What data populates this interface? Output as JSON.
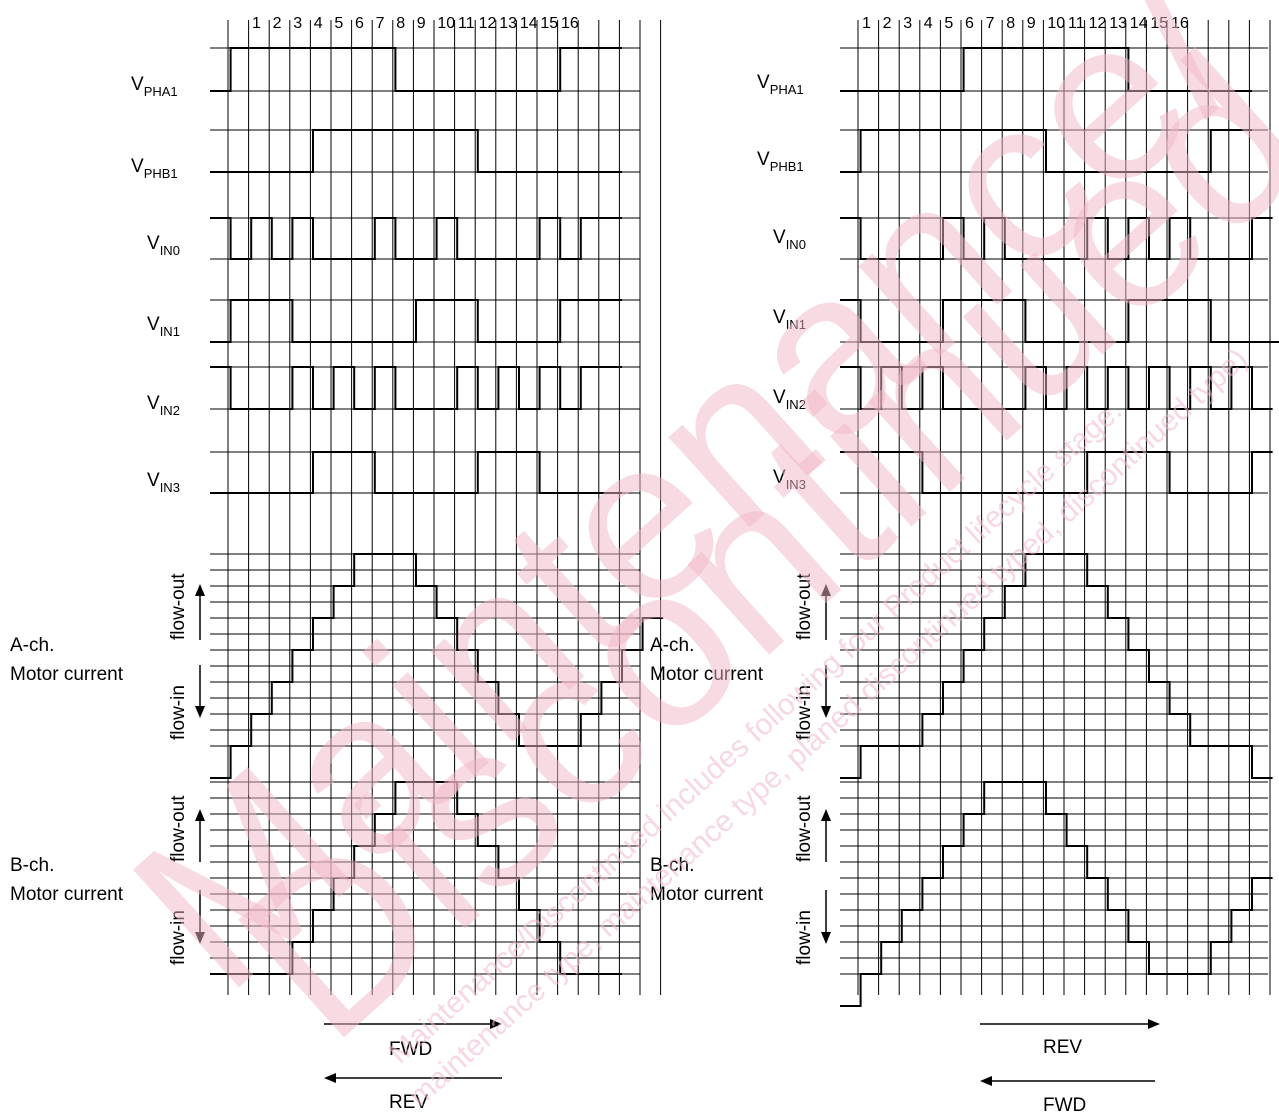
{
  "watermark": {
    "line1": "Maintenance/",
    "line2": "Discontinued",
    "small1": "Maintenance/Discontinued includes following four Product lifecycle stage.",
    "small2": "maintenance type, maintenance type, planed discontinued typed, discontinued type)"
  },
  "signals": {
    "pha1": {
      "main": "V",
      "sub": "PHA1"
    },
    "phb1": {
      "main": "V",
      "sub": "PHB1"
    },
    "in0": {
      "main": "V",
      "sub": "IN0"
    },
    "in1": {
      "main": "V",
      "sub": "IN1"
    },
    "in2": {
      "main": "V",
      "sub": "IN2"
    },
    "in3": {
      "main": "V",
      "sub": "IN3"
    }
  },
  "current_labels": {
    "a_ch": "A-ch.",
    "b_ch": "B-ch.",
    "motor_current": "Motor current",
    "flow_out": "flow-out",
    "flow_in": "flow-in"
  },
  "step_numbers": [
    "1",
    "2",
    "3",
    "4",
    "5",
    "6",
    "7",
    "8",
    "9",
    "10",
    "11",
    "12",
    "13",
    "14",
    "15",
    "16"
  ],
  "left_panel": {
    "arrow_right_label": "FWD",
    "arrow_left_label": "REV",
    "waveforms": {
      "pha1": [
        0,
        1,
        1,
        1,
        1,
        1,
        1,
        1,
        1,
        0,
        0,
        0,
        0,
        0,
        0,
        0,
        0,
        1,
        1,
        1
      ],
      "phb1": [
        0,
        0,
        0,
        0,
        0,
        1,
        1,
        1,
        1,
        1,
        1,
        1,
        1,
        0,
        0,
        0,
        0,
        0,
        0,
        0
      ],
      "in0": [
        1,
        0,
        1,
        0,
        1,
        0,
        0,
        0,
        1,
        0,
        0,
        1,
        0,
        0,
        0,
        0,
        1,
        0,
        1,
        1
      ],
      "in1": [
        0,
        1,
        1,
        1,
        0,
        0,
        0,
        0,
        0,
        0,
        1,
        1,
        1,
        0,
        0,
        0,
        0,
        1,
        1,
        1
      ],
      "in2": [
        1,
        0,
        0,
        0,
        1,
        0,
        1,
        0,
        1,
        0,
        0,
        0,
        1,
        0,
        1,
        0,
        1,
        0,
        1,
        1
      ],
      "in3": [
        0,
        0,
        0,
        0,
        0,
        1,
        1,
        1,
        0,
        0,
        0,
        0,
        0,
        1,
        1,
        1,
        0,
        0,
        0,
        0
      ],
      "a_current": [
        -4,
        -3,
        -2,
        -1,
        0,
        1,
        2,
        3,
        3,
        3,
        2,
        1,
        0,
        -1,
        -2,
        -3,
        -3,
        -3,
        -2,
        -1,
        0,
        1
      ],
      "b_current": [
        -3,
        -3,
        -3,
        -3,
        -2,
        -1,
        0,
        1,
        2,
        3,
        3,
        3,
        2,
        1,
        0,
        -1,
        -2,
        -3,
        -3,
        -3
      ]
    }
  },
  "right_panel": {
    "arrow_right_label": "REV",
    "arrow_left_label": "FWD",
    "waveforms": {
      "pha1": [
        0,
        0,
        0,
        0,
        0,
        0,
        1,
        1,
        1,
        1,
        1,
        1,
        1,
        1,
        0,
        0,
        0,
        0,
        0,
        0
      ],
      "phb1": [
        0,
        1,
        1,
        1,
        1,
        1,
        1,
        1,
        1,
        1,
        0,
        0,
        0,
        0,
        0,
        0,
        0,
        0,
        1,
        1
      ],
      "in0": [
        1,
        0,
        0,
        0,
        0,
        1,
        0,
        1,
        0,
        0,
        0,
        0,
        1,
        0,
        1,
        0,
        1,
        0,
        0,
        0,
        1
      ],
      "in1": [
        1,
        0,
        0,
        0,
        0,
        1,
        1,
        1,
        1,
        0,
        0,
        0,
        0,
        0,
        1,
        1,
        1,
        1,
        0,
        0,
        0,
        0
      ],
      "in2": [
        1,
        0,
        1,
        0,
        1,
        0,
        0,
        0,
        0,
        1,
        0,
        1,
        0,
        1,
        0,
        1,
        0,
        1,
        0,
        1,
        0
      ],
      "in3": [
        1,
        1,
        1,
        1,
        0,
        0,
        0,
        0,
        0,
        0,
        0,
        0,
        1,
        1,
        1,
        1,
        0,
        0,
        0,
        0,
        1
      ],
      "a_current": [
        -4,
        -3,
        -3,
        -3,
        -2,
        -1,
        0,
        1,
        2,
        3,
        3,
        3,
        2,
        1,
        0,
        -1,
        -2,
        -3,
        -3,
        -3,
        -4
      ],
      "b_current": [
        -4,
        -3,
        -2,
        -1,
        0,
        1,
        2,
        3,
        3,
        3,
        2,
        1,
        0,
        -1,
        -2,
        -3,
        -3,
        -3,
        -2,
        -1,
        0
      ]
    }
  }
}
